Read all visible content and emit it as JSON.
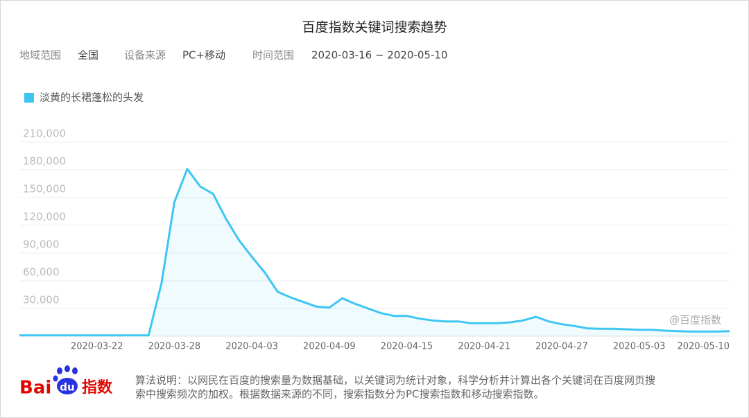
{
  "header": {
    "title": "百度指数关键词搜索趋势",
    "filters": [
      {
        "label": "地域范围",
        "value": "全国"
      },
      {
        "label": "设备来源",
        "value": "PC+移动"
      },
      {
        "label": "时间范围",
        "value": "2020-03-16 ~ 2020-05-10"
      }
    ]
  },
  "chart_data": {
    "type": "line",
    "x": [
      "2020-03-16",
      "2020-03-17",
      "2020-03-18",
      "2020-03-19",
      "2020-03-20",
      "2020-03-21",
      "2020-03-22",
      "2020-03-23",
      "2020-03-24",
      "2020-03-25",
      "2020-03-26",
      "2020-03-27",
      "2020-03-28",
      "2020-03-29",
      "2020-03-30",
      "2020-03-31",
      "2020-04-01",
      "2020-04-02",
      "2020-04-03",
      "2020-04-04",
      "2020-04-05",
      "2020-04-06",
      "2020-04-07",
      "2020-04-08",
      "2020-04-09",
      "2020-04-10",
      "2020-04-11",
      "2020-04-12",
      "2020-04-13",
      "2020-04-14",
      "2020-04-15",
      "2020-04-16",
      "2020-04-17",
      "2020-04-18",
      "2020-04-19",
      "2020-04-20",
      "2020-04-21",
      "2020-04-22",
      "2020-04-23",
      "2020-04-24",
      "2020-04-25",
      "2020-04-26",
      "2020-04-27",
      "2020-04-28",
      "2020-04-29",
      "2020-04-30",
      "2020-05-01",
      "2020-05-02",
      "2020-05-03",
      "2020-05-04",
      "2020-05-05",
      "2020-05-06",
      "2020-05-07",
      "2020-05-08",
      "2020-05-09",
      "2020-05-10"
    ],
    "series": [
      {
        "name": "淡黄的长裙蓬松的头发",
        "color": "#3ec6f3",
        "values": [
          1000,
          1000,
          1000,
          1000,
          1000,
          1000,
          1000,
          1000,
          1000,
          1000,
          1000,
          57000,
          145000,
          181000,
          162000,
          154000,
          127000,
          104000,
          86000,
          69000,
          48000,
          42000,
          37000,
          32000,
          31000,
          41000,
          35000,
          30000,
          25000,
          22000,
          22000,
          19000,
          17000,
          16000,
          16000,
          14000,
          14000,
          14000,
          15000,
          17000,
          21000,
          16000,
          13000,
          11000,
          8500,
          8000,
          8000,
          7500,
          7000,
          7000,
          6000,
          5500,
          5000,
          5000,
          5000,
          5500
        ]
      }
    ],
    "xlim": [
      "2020-03-16",
      "2020-05-10"
    ],
    "xticks": [
      "2020-03-22",
      "2020-03-28",
      "2020-04-03",
      "2020-04-09",
      "2020-04-15",
      "2020-04-21",
      "2020-04-27",
      "2020-05-03",
      "2020-05-10"
    ],
    "ylim": [
      0,
      210000
    ],
    "yticks": [
      {
        "value": 30000,
        "label": "30,000"
      },
      {
        "value": 60000,
        "label": "60,000"
      },
      {
        "value": 90000,
        "label": "90,000"
      },
      {
        "value": 120000,
        "label": "120,000"
      },
      {
        "value": 150000,
        "label": "150,000"
      },
      {
        "value": 180000,
        "label": "180,000"
      },
      {
        "value": 210000,
        "label": "210,000"
      }
    ],
    "grid": true,
    "watermark": "@百度指数"
  },
  "footer": {
    "logo": [
      "Bai",
      "du",
      "指数"
    ],
    "note": [
      "算法说明：以网民在百度的搜索量为数据基础，以关键词为统计对象，科学分析并计算出各个关键词在百度网页搜",
      "索中搜索频次的加权。根据数据来源的不同，搜索指数分为PC搜索指数和移动搜索指数。"
    ]
  }
}
